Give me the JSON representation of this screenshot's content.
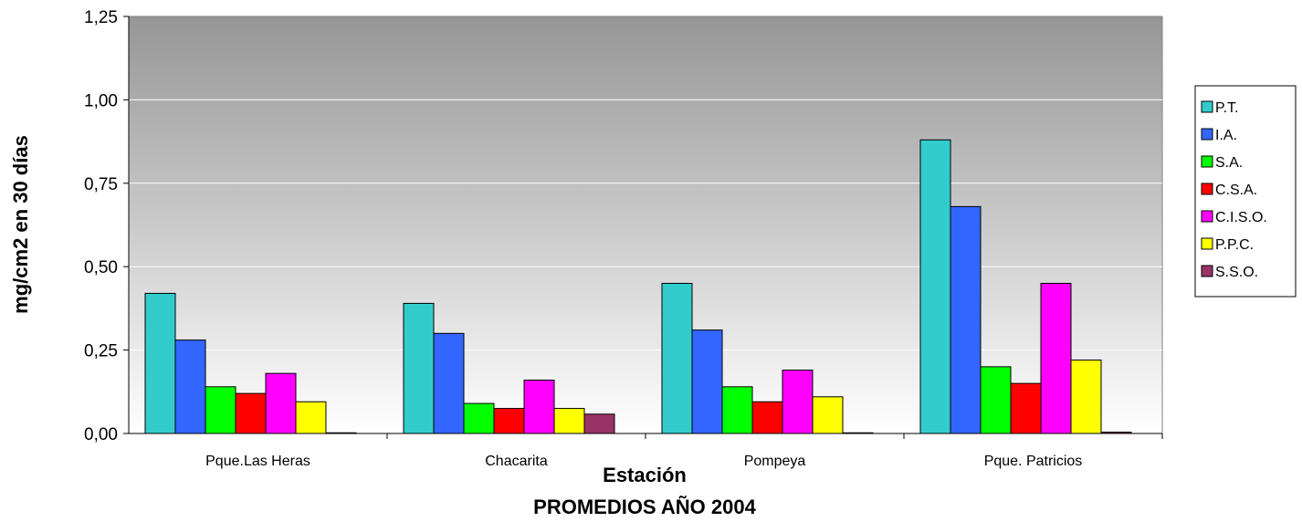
{
  "chart_data": {
    "type": "bar",
    "title": "",
    "subtitle": "PROMEDIOS AÑO 2004",
    "xlabel": "Estación",
    "ylabel": "mg/cm2 en 30 días",
    "ylim": [
      0,
      1.25
    ],
    "yticks": [
      "0,00",
      "0,25",
      "0,50",
      "0,75",
      "1,00",
      "1,25"
    ],
    "categories": [
      "Pque.Las Heras",
      "Chacarita",
      "Pompeya",
      "Pque. Patricios"
    ],
    "grid": true,
    "legend_position": "right",
    "series": [
      {
        "name": "P.T.",
        "color": "#33CCCC",
        "values": [
          0.42,
          0.39,
          0.45,
          0.88
        ]
      },
      {
        "name": "I.A.",
        "color": "#3366FF",
        "values": [
          0.28,
          0.3,
          0.31,
          0.68
        ]
      },
      {
        "name": "S.A.",
        "color": "#00FF00",
        "values": [
          0.14,
          0.09,
          0.14,
          0.2
        ]
      },
      {
        "name": "C.S.A.",
        "color": "#FF0000",
        "values": [
          0.12,
          0.075,
          0.095,
          0.15
        ]
      },
      {
        "name": "C.I.S.O.",
        "color": "#FF00FF",
        "values": [
          0.18,
          0.16,
          0.19,
          0.45
        ]
      },
      {
        "name": "P.P.C.",
        "color": "#FFFF00",
        "values": [
          0.095,
          0.075,
          0.11,
          0.22
        ]
      },
      {
        "name": "S.S.O.",
        "color": "#993366",
        "values": [
          0.002,
          0.058,
          0.002,
          0.004
        ]
      }
    ]
  }
}
